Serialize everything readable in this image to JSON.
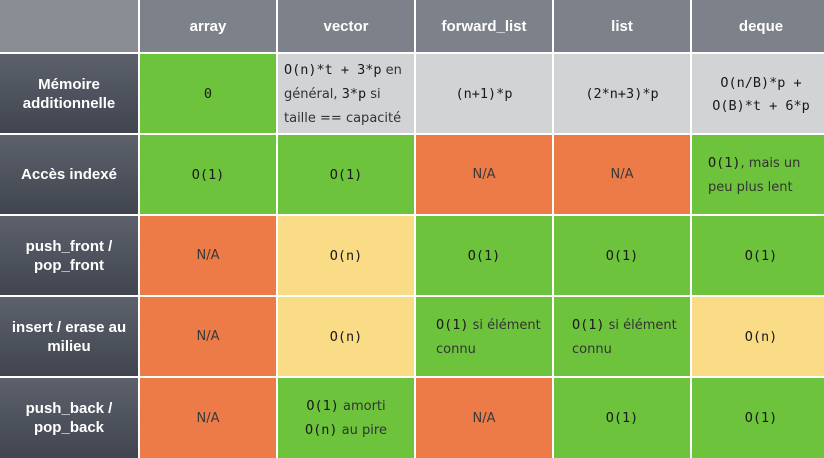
{
  "columns": [
    "array",
    "vector",
    "forward_list",
    "list",
    "deque"
  ],
  "rows": [
    {
      "header": "Mémoire additionnelle",
      "cells": {
        "array": {
          "code": "0"
        },
        "vector": {
          "line1_code": "O(n)*t + 3*p",
          "line1_text": " en",
          "line2_text": "général, ",
          "line2_code": "3*p",
          "line2_text2": " si",
          "line3_text": "taille == capacité"
        },
        "forward_list": {
          "code": "(n+1)*p"
        },
        "list": {
          "code": "(2*n+3)*p"
        },
        "deque": {
          "line1_code": "O(n/B)*p +",
          "line2_code": "O(B)*t + 6*p"
        }
      }
    },
    {
      "header": "Accès indexé",
      "cells": {
        "array": {
          "code": "O(1)"
        },
        "vector": {
          "code": "O(1)"
        },
        "forward_list": {
          "text": "N/A"
        },
        "list": {
          "text": "N/A"
        },
        "deque": {
          "line1_code": "O(1)",
          "line1_text": ", mais un",
          "line2_text": "peu plus lent"
        }
      }
    },
    {
      "header": "push_front / pop_front",
      "cells": {
        "array": {
          "text": "N/A"
        },
        "vector": {
          "code": "O(n)"
        },
        "forward_list": {
          "code": "O(1)"
        },
        "list": {
          "code": "O(1)"
        },
        "deque": {
          "code": "O(1)"
        }
      }
    },
    {
      "header": "insert / erase au milieu",
      "cells": {
        "array": {
          "text": "N/A"
        },
        "vector": {
          "code": "O(n)"
        },
        "forward_list": {
          "line1_code": "O(1)",
          "line1_text": " si élément",
          "line2_text": "connu"
        },
        "list": {
          "line1_code": "O(1)",
          "line1_text": "  si élément",
          "line2_text": "connu"
        },
        "deque": {
          "code": "O(n)"
        }
      }
    },
    {
      "header": "push_back / pop_back",
      "cells": {
        "array": {
          "text": "N/A"
        },
        "vector": {
          "line1_code": "O(1)",
          "line1_text": " amorti",
          "line2_code": "O(n)",
          "line2_text": "  au pire"
        },
        "forward_list": {
          "text": "N/A"
        },
        "list": {
          "code": "O(1)"
        },
        "deque": {
          "code": "O(1)"
        }
      }
    }
  ],
  "colors": {
    "green": "#6ec33c",
    "orange": "#ec7b48",
    "yellow": "#fbdc86",
    "gray": "#d2d3d5",
    "header_bg": "#7d8189",
    "row_header_bg": "#4a4f5a"
  }
}
